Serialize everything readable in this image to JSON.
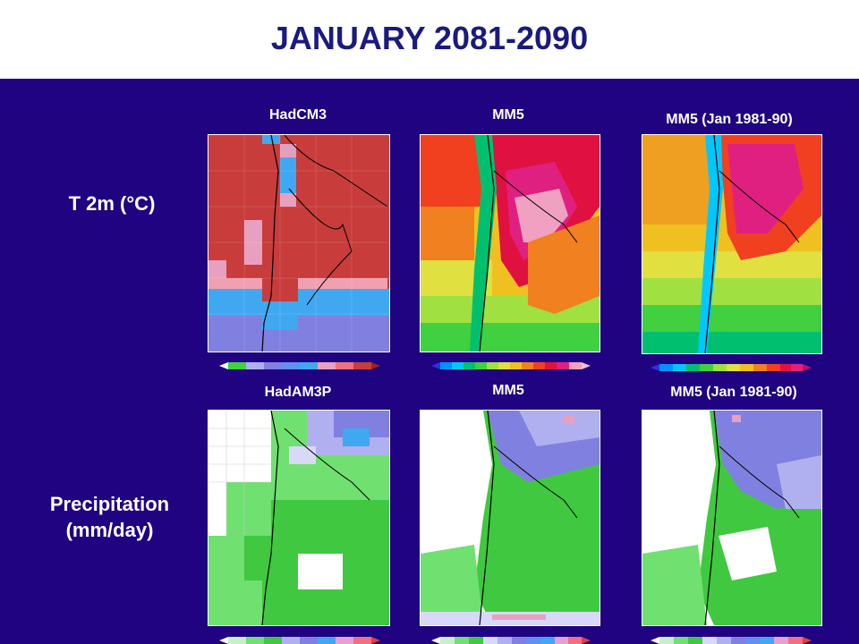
{
  "slide": {
    "title": "JANUARY 2081-2090"
  },
  "rows": [
    {
      "label_line1": "T 2m (°C)",
      "label_line2": ""
    },
    {
      "label_line1": "Precipitation",
      "label_line2": "(mm/day)"
    }
  ],
  "panels": {
    "top": [
      "HadCM3",
      "MM5",
      "MM5 (Jan 1981-90)"
    ],
    "bottom": [
      "HadAM3P",
      "MM5",
      "MM5 (Jan 1981-90)"
    ]
  },
  "colors": {
    "background": "#1f0381",
    "title": "#1a1a80",
    "temp_scale": [
      "#7020c0",
      "#3030e0",
      "#0090ff",
      "#00c8ff",
      "#00c070",
      "#40d040",
      "#a0e040",
      "#e0e040",
      "#f0c020",
      "#f08020",
      "#f04020",
      "#e01040",
      "#e02080",
      "#f0a0c0"
    ],
    "precip_scale": [
      "#ffffff",
      "#c8f0c8",
      "#70e070",
      "#40c840",
      "#d8d8f8",
      "#b0b0f0",
      "#8080e0",
      "#6090f0",
      "#40a8f0",
      "#e8a0d0",
      "#f07080",
      "#e04040"
    ]
  }
}
